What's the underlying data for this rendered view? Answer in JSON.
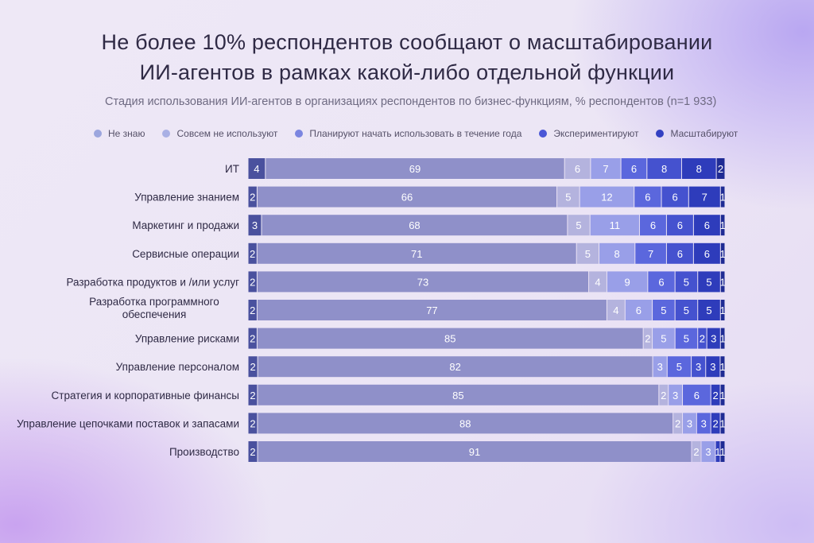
{
  "title_line1": "Не более 10% респондентов сообщают о масштабировании",
  "title_line2": "ИИ-агентов в рамках какой-либо отдельной функции",
  "subtitle": "Стадия использования ИИ-агентов в организациях респондентов по бизнес-функциям, % респондентов (n=1 933)",
  "chart_data": {
    "type": "bar",
    "stacked": true,
    "orientation": "horizontal",
    "normalized": "100%",
    "legend_position": "top",
    "categories": [
      [
        "ИТ"
      ],
      [
        "Управление знанием"
      ],
      [
        "Маркетинг и продажи"
      ],
      [
        "Сервисные операции"
      ],
      [
        "Разработка продуктов и /или услуг"
      ],
      [
        "Разработка программного",
        "обеспечения"
      ],
      [
        "Управление рисками"
      ],
      [
        "Управление персоналом"
      ],
      [
        "Стратегия и корпоративные финансы"
      ],
      [
        "Управление цепочками поставок и запасами"
      ],
      [
        "Производство"
      ]
    ],
    "segments": [
      {
        "series": "Не знаю",
        "color": "#4a519e",
        "label_color": "#ffffff"
      },
      {
        "series": "Совсем не используют",
        "color": "#8f90c9",
        "label_color": "#ffffff"
      },
      {
        "series": "Совсем не используют",
        "color": "#b4b3de",
        "label_color": "#ffffff"
      },
      {
        "series": "Планируют начать использовать в течение года",
        "color": "#999fe8",
        "label_color": "#ffffff"
      },
      {
        "series": "Экспериментируют",
        "color": "#5b67dd",
        "label_color": "#ffffff"
      },
      {
        "series": "Экспериментируют",
        "color": "#4552cf",
        "label_color": "#ffffff"
      },
      {
        "series": "Масштабируют",
        "color": "#2e3cbb",
        "label_color": "#ffffff"
      },
      {
        "series": "Масштабируют",
        "color": "#1f2b94",
        "label_color": "#ffffff"
      }
    ],
    "rows": [
      [
        4,
        69,
        6,
        7,
        6,
        8,
        8,
        2
      ],
      [
        2,
        66,
        5,
        12,
        6,
        6,
        7,
        1
      ],
      [
        3,
        68,
        5,
        11,
        6,
        6,
        6,
        1
      ],
      [
        2,
        71,
        5,
        8,
        7,
        6,
        6,
        1
      ],
      [
        2,
        73,
        4,
        9,
        6,
        5,
        5,
        1
      ],
      [
        2,
        77,
        4,
        6,
        5,
        5,
        5,
        1
      ],
      [
        2,
        85,
        2,
        5,
        5,
        2,
        3,
        1
      ],
      [
        2,
        82,
        0,
        3,
        5,
        3,
        3,
        1
      ],
      [
        2,
        85,
        2,
        3,
        6,
        0,
        2,
        1
      ],
      [
        2,
        88,
        2,
        3,
        3,
        0,
        2,
        1
      ],
      [
        2,
        91,
        2,
        3,
        0,
        0,
        1,
        1
      ]
    ],
    "legend": [
      {
        "label": "Не знаю",
        "color": "#9ca6de"
      },
      {
        "label": "Совсем не используют",
        "color": "#a9b0e4"
      },
      {
        "label": "Планируют начать использовать в течение года",
        "color": "#7b85e0"
      },
      {
        "label": "Экспериментируют",
        "color": "#4a57d6"
      },
      {
        "label": "Масштабируют",
        "color": "#3340c2"
      }
    ]
  }
}
